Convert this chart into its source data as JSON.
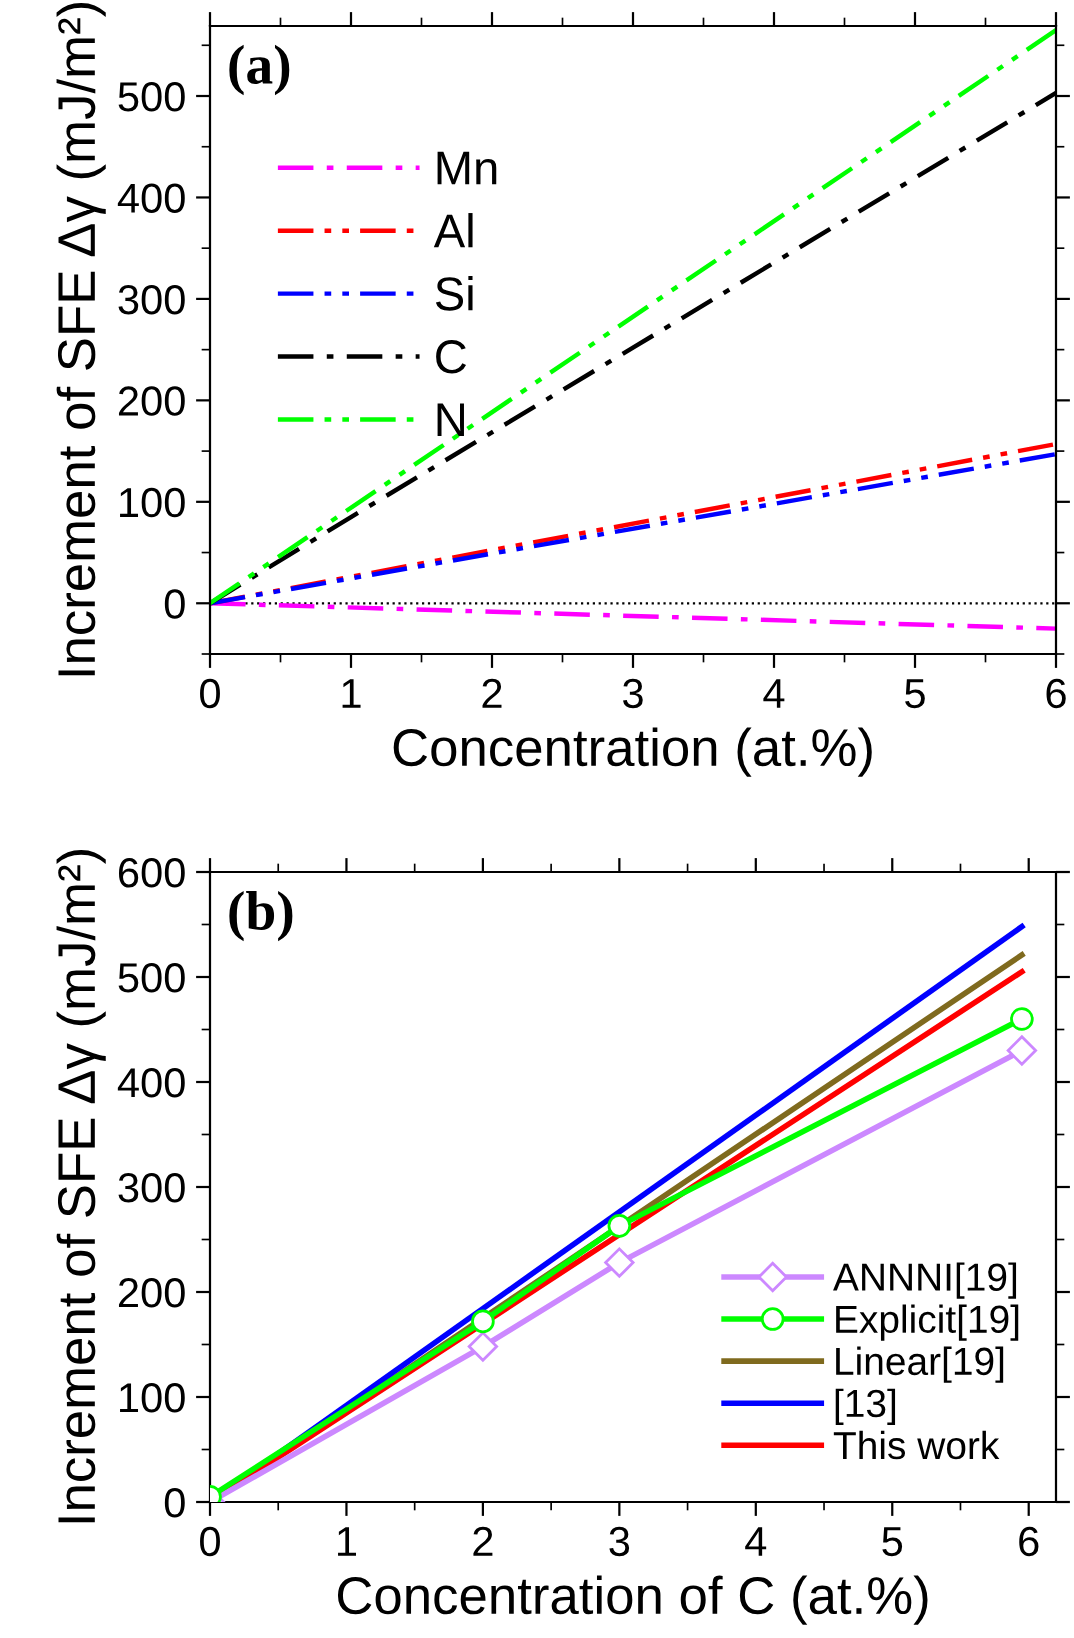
{
  "chart_data": [
    {
      "type": "line",
      "title": "(a)",
      "xlabel": "Concentration (at.%)",
      "ylabel": "Increment of SFE Δγ (mJ/m²)",
      "xlim": [
        0,
        6
      ],
      "ylim": [
        -50,
        569
      ],
      "xticks": [
        0,
        1,
        2,
        3,
        4,
        5,
        6
      ],
      "yticks": [
        0,
        100,
        200,
        300,
        400,
        500
      ],
      "legend": "top left",
      "grid": false,
      "marker": "none",
      "ref_lines": [
        {
          "axis": "y",
          "value": 0,
          "color": "#000000",
          "line_style": "dotted"
        }
      ],
      "series": [
        {
          "name": "Mn",
          "color": "#ff00ff",
          "line_style": "dashdot",
          "x": [
            0,
            6
          ],
          "values": [
            0,
            -25
          ]
        },
        {
          "name": "Al",
          "color": "#ff0000",
          "line_style": "dashdotdot",
          "x": [
            0,
            6
          ],
          "values": [
            0,
            157
          ]
        },
        {
          "name": "Si",
          "color": "#0000ff",
          "line_style": "dashdotdot",
          "x": [
            0,
            6
          ],
          "values": [
            0,
            147
          ]
        },
        {
          "name": "C",
          "color": "#000000",
          "line_style": "dashdot",
          "x": [
            0,
            1,
            3,
            6
          ],
          "values": [
            0,
            85,
            252,
            503
          ]
        },
        {
          "name": "N",
          "color": "#00ff00",
          "line_style": "dashdotdot",
          "x": [
            0,
            6
          ],
          "values": [
            0,
            565
          ]
        }
      ]
    },
    {
      "type": "line",
      "title": "(b)",
      "xlabel": "Concentration of C (at.%)",
      "ylabel": "Increment of SFE Δγ (mJ/m²)",
      "xlim": [
        0,
        6.2
      ],
      "ylim": [
        0,
        600
      ],
      "xticks": [
        0,
        1,
        2,
        3,
        4,
        5,
        6
      ],
      "yticks": [
        0,
        100,
        200,
        300,
        400,
        500,
        600
      ],
      "legend": "bottom right",
      "grid": false,
      "line_style": "solid",
      "series": [
        {
          "name": "ANNNI[19]",
          "color": "#cc88ff",
          "marker": "diamond",
          "x": [
            0,
            2,
            3,
            5.95
          ],
          "values": [
            0,
            148,
            228,
            430
          ]
        },
        {
          "name": "Explicit[19]",
          "color": "#00ff00",
          "marker": "circle",
          "x": [
            0,
            2,
            3,
            5.95
          ],
          "values": [
            5,
            172,
            263,
            460
          ]
        },
        {
          "name": "Linear[19]",
          "color": "#7f6a1e",
          "marker": "none",
          "x": [
            0,
            5.95
          ],
          "values": [
            0,
            521
          ]
        },
        {
          "name": "[13]",
          "color": "#0000ff",
          "marker": "none",
          "x": [
            0,
            5.95
          ],
          "values": [
            0,
            548
          ]
        },
        {
          "name": "This work",
          "color": "#ff0000",
          "marker": "none",
          "x": [
            0,
            5.95
          ],
          "values": [
            0,
            505
          ]
        }
      ]
    }
  ]
}
